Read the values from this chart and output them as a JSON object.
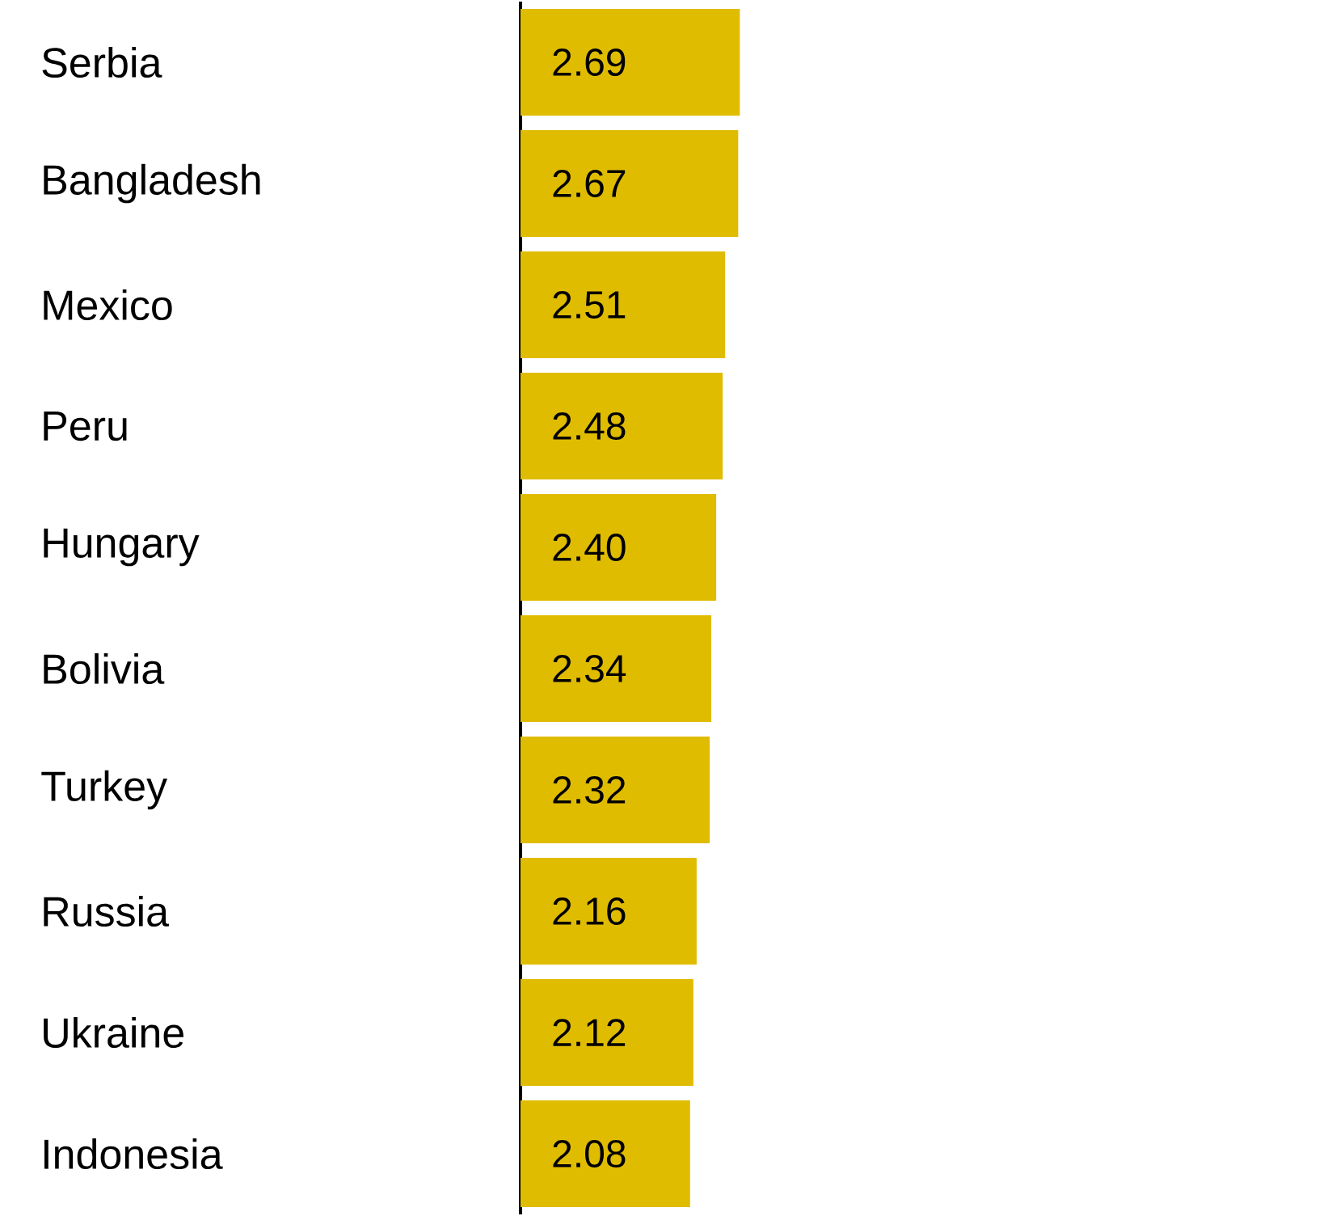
{
  "chart_data": {
    "type": "bar",
    "orientation": "horizontal",
    "categories": [
      "Serbia",
      "Bangladesh",
      "Mexico",
      "Peru",
      "Hungary",
      "Bolivia",
      "Turkey",
      "Russia",
      "Ukraine",
      "Indonesia"
    ],
    "values": [
      2.69,
      2.67,
      2.51,
      2.48,
      2.4,
      2.34,
      2.32,
      2.16,
      2.12,
      2.08
    ],
    "value_labels": [
      "2.69",
      "2.67",
      "2.51",
      "2.48",
      "2.40",
      "2.34",
      "2.32",
      "2.16",
      "2.12",
      "2.08"
    ],
    "color": "#e0bc00"
  }
}
